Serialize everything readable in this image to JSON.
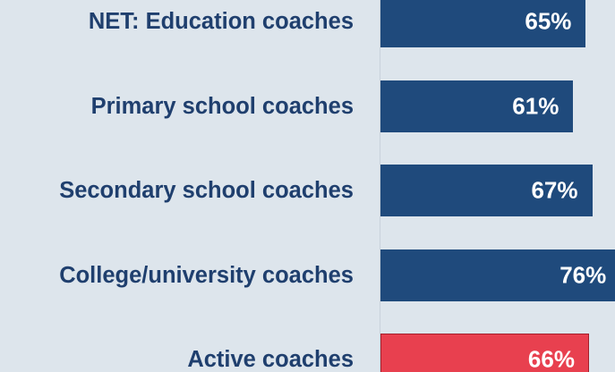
{
  "chart_data": {
    "type": "bar",
    "orientation": "horizontal",
    "categories": [
      "NET: Education coaches",
      "Primary school coaches",
      "Secondary school coaches",
      "College/university coaches",
      "Active coaches"
    ],
    "values": [
      65,
      61,
      67,
      76,
      66
    ],
    "value_labels": [
      "65%",
      "61%",
      "67%",
      "76%",
      "66%"
    ],
    "colors": [
      "#1f4a7c",
      "#1f4a7c",
      "#1f4a7c",
      "#1f4a7c",
      "#e8404f"
    ]
  }
}
